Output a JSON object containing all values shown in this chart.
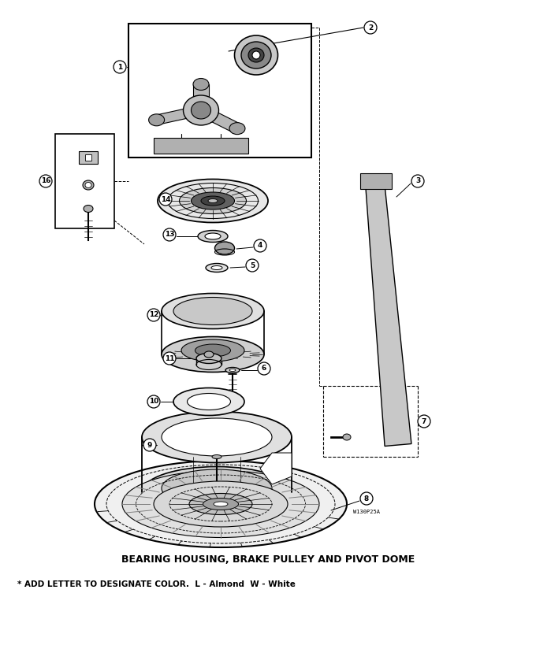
{
  "title": "BEARING HOUSING, BRAKE PULLEY AND PIVOT DOME",
  "footnote": "* ADD LETTER TO DESIGNATE COLOR.  L - Almond  W - White",
  "watermark": "W130P25A",
  "bg_color": "#ffffff",
  "line_color": "#000000",
  "title_fontsize": 9,
  "footnote_fontsize": 7.5,
  "fig_width": 6.8,
  "fig_height": 8.52,
  "dpi": 100
}
